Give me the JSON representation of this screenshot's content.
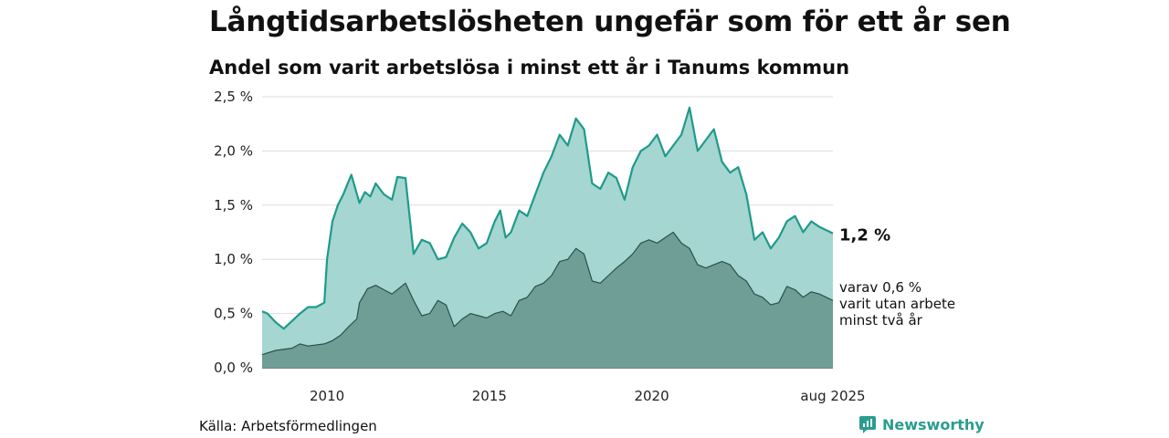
{
  "header": {
    "title": "Långtidsarbetslösheten ungefär som för ett år sen",
    "subtitle": "Andel som varit arbetslösa i minst ett år i Tanums kommun"
  },
  "footer": {
    "source": "Källa: Arbetsförmedlingen",
    "brand": "Newsworthy",
    "brand_icon": "newsworthy-logo-icon"
  },
  "colors": {
    "main_line": "#1f9a8a",
    "main_fill": "#a5d6d1",
    "sub_fill": "#6f9e97",
    "sub_line": "#2d4f49",
    "grid": "#dddddd",
    "brand": "#2a9d8f"
  },
  "chart_data": {
    "type": "area",
    "x_range": [
      "2008-01",
      "2025-08"
    ],
    "ylim": [
      0,
      2.5
    ],
    "y_ticks": [
      "0,0 %",
      "0,5 %",
      "1,0 %",
      "1,5 %",
      "2,0 %",
      "2,5 %"
    ],
    "x_ticks": [
      "2010",
      "2015",
      "2020",
      "aug 2025"
    ],
    "grid": "horizontal",
    "series": [
      {
        "key": "total",
        "points": [
          [
            "2008-01",
            0.52
          ],
          [
            "2008-03",
            0.5
          ],
          [
            "2008-06",
            0.42
          ],
          [
            "2008-09",
            0.36
          ],
          [
            "2008-12",
            0.43
          ],
          [
            "2009-03",
            0.5
          ],
          [
            "2009-06",
            0.56
          ],
          [
            "2009-09",
            0.56
          ],
          [
            "2009-12",
            0.6
          ],
          [
            "2010-01",
            1.0
          ],
          [
            "2010-03",
            1.35
          ],
          [
            "2010-05",
            1.5
          ],
          [
            "2010-07",
            1.6
          ],
          [
            "2010-10",
            1.78
          ],
          [
            "2011-01",
            1.52
          ],
          [
            "2011-03",
            1.62
          ],
          [
            "2011-05",
            1.58
          ],
          [
            "2011-07",
            1.7
          ],
          [
            "2011-10",
            1.6
          ],
          [
            "2012-01",
            1.55
          ],
          [
            "2012-03",
            1.76
          ],
          [
            "2012-06",
            1.75
          ],
          [
            "2012-09",
            1.05
          ],
          [
            "2012-12",
            1.18
          ],
          [
            "2013-03",
            1.15
          ],
          [
            "2013-06",
            1.0
          ],
          [
            "2013-09",
            1.02
          ],
          [
            "2013-12",
            1.2
          ],
          [
            "2014-03",
            1.33
          ],
          [
            "2014-06",
            1.25
          ],
          [
            "2014-09",
            1.1
          ],
          [
            "2014-12",
            1.15
          ],
          [
            "2015-03",
            1.35
          ],
          [
            "2015-05",
            1.45
          ],
          [
            "2015-07",
            1.2
          ],
          [
            "2015-09",
            1.25
          ],
          [
            "2015-12",
            1.45
          ],
          [
            "2016-03",
            1.4
          ],
          [
            "2016-06",
            1.6
          ],
          [
            "2016-09",
            1.8
          ],
          [
            "2016-12",
            1.95
          ],
          [
            "2017-03",
            2.15
          ],
          [
            "2017-06",
            2.05
          ],
          [
            "2017-09",
            2.3
          ],
          [
            "2017-12",
            2.2
          ],
          [
            "2018-03",
            1.7
          ],
          [
            "2018-06",
            1.65
          ],
          [
            "2018-09",
            1.8
          ],
          [
            "2018-12",
            1.75
          ],
          [
            "2019-03",
            1.55
          ],
          [
            "2019-06",
            1.85
          ],
          [
            "2019-09",
            2.0
          ],
          [
            "2019-12",
            2.05
          ],
          [
            "2020-03",
            2.15
          ],
          [
            "2020-06",
            1.95
          ],
          [
            "2020-09",
            2.05
          ],
          [
            "2020-12",
            2.15
          ],
          [
            "2021-03",
            2.4
          ],
          [
            "2021-06",
            2.0
          ],
          [
            "2021-09",
            2.1
          ],
          [
            "2021-12",
            2.2
          ],
          [
            "2022-03",
            1.9
          ],
          [
            "2022-06",
            1.8
          ],
          [
            "2022-09",
            1.85
          ],
          [
            "2022-12",
            1.6
          ],
          [
            "2023-03",
            1.18
          ],
          [
            "2023-06",
            1.25
          ],
          [
            "2023-09",
            1.1
          ],
          [
            "2023-12",
            1.2
          ],
          [
            "2024-03",
            1.35
          ],
          [
            "2024-06",
            1.4
          ],
          [
            "2024-09",
            1.25
          ],
          [
            "2024-12",
            1.35
          ],
          [
            "2025-03",
            1.3
          ],
          [
            "2025-08",
            1.24
          ]
        ]
      },
      {
        "key": "two_years",
        "points": [
          [
            "2008-01",
            0.12
          ],
          [
            "2008-06",
            0.16
          ],
          [
            "2008-12",
            0.18
          ],
          [
            "2009-03",
            0.22
          ],
          [
            "2009-06",
            0.2
          ],
          [
            "2009-12",
            0.22
          ],
          [
            "2010-03",
            0.25
          ],
          [
            "2010-06",
            0.3
          ],
          [
            "2010-09",
            0.38
          ],
          [
            "2010-12",
            0.45
          ],
          [
            "2011-01",
            0.6
          ],
          [
            "2011-04",
            0.73
          ],
          [
            "2011-07",
            0.76
          ],
          [
            "2011-10",
            0.72
          ],
          [
            "2012-01",
            0.68
          ],
          [
            "2012-03",
            0.72
          ],
          [
            "2012-06",
            0.78
          ],
          [
            "2012-09",
            0.62
          ],
          [
            "2012-12",
            0.48
          ],
          [
            "2013-03",
            0.5
          ],
          [
            "2013-06",
            0.62
          ],
          [
            "2013-09",
            0.58
          ],
          [
            "2013-12",
            0.38
          ],
          [
            "2014-03",
            0.45
          ],
          [
            "2014-06",
            0.5
          ],
          [
            "2014-09",
            0.48
          ],
          [
            "2014-12",
            0.46
          ],
          [
            "2015-03",
            0.5
          ],
          [
            "2015-06",
            0.52
          ],
          [
            "2015-09",
            0.48
          ],
          [
            "2015-12",
            0.62
          ],
          [
            "2016-03",
            0.65
          ],
          [
            "2016-06",
            0.75
          ],
          [
            "2016-09",
            0.78
          ],
          [
            "2016-12",
            0.85
          ],
          [
            "2017-03",
            0.98
          ],
          [
            "2017-06",
            1.0
          ],
          [
            "2017-09",
            1.1
          ],
          [
            "2017-12",
            1.05
          ],
          [
            "2018-03",
            0.8
          ],
          [
            "2018-06",
            0.78
          ],
          [
            "2018-09",
            0.85
          ],
          [
            "2018-12",
            0.92
          ],
          [
            "2019-03",
            0.98
          ],
          [
            "2019-06",
            1.05
          ],
          [
            "2019-09",
            1.15
          ],
          [
            "2019-12",
            1.18
          ],
          [
            "2020-03",
            1.15
          ],
          [
            "2020-06",
            1.2
          ],
          [
            "2020-09",
            1.25
          ],
          [
            "2020-12",
            1.15
          ],
          [
            "2021-03",
            1.1
          ],
          [
            "2021-06",
            0.95
          ],
          [
            "2021-09",
            0.92
          ],
          [
            "2021-12",
            0.95
          ],
          [
            "2022-03",
            0.98
          ],
          [
            "2022-06",
            0.95
          ],
          [
            "2022-09",
            0.85
          ],
          [
            "2022-12",
            0.8
          ],
          [
            "2023-03",
            0.68
          ],
          [
            "2023-06",
            0.65
          ],
          [
            "2023-09",
            0.58
          ],
          [
            "2023-12",
            0.6
          ],
          [
            "2024-03",
            0.75
          ],
          [
            "2024-06",
            0.72
          ],
          [
            "2024-09",
            0.65
          ],
          [
            "2024-12",
            0.7
          ],
          [
            "2025-03",
            0.68
          ],
          [
            "2025-08",
            0.62
          ]
        ]
      }
    ],
    "end_labels": {
      "total_value": "1,2 %",
      "sub_lines": [
        "varav 0,6 %",
        "varit utan arbete",
        "minst två år"
      ]
    }
  }
}
